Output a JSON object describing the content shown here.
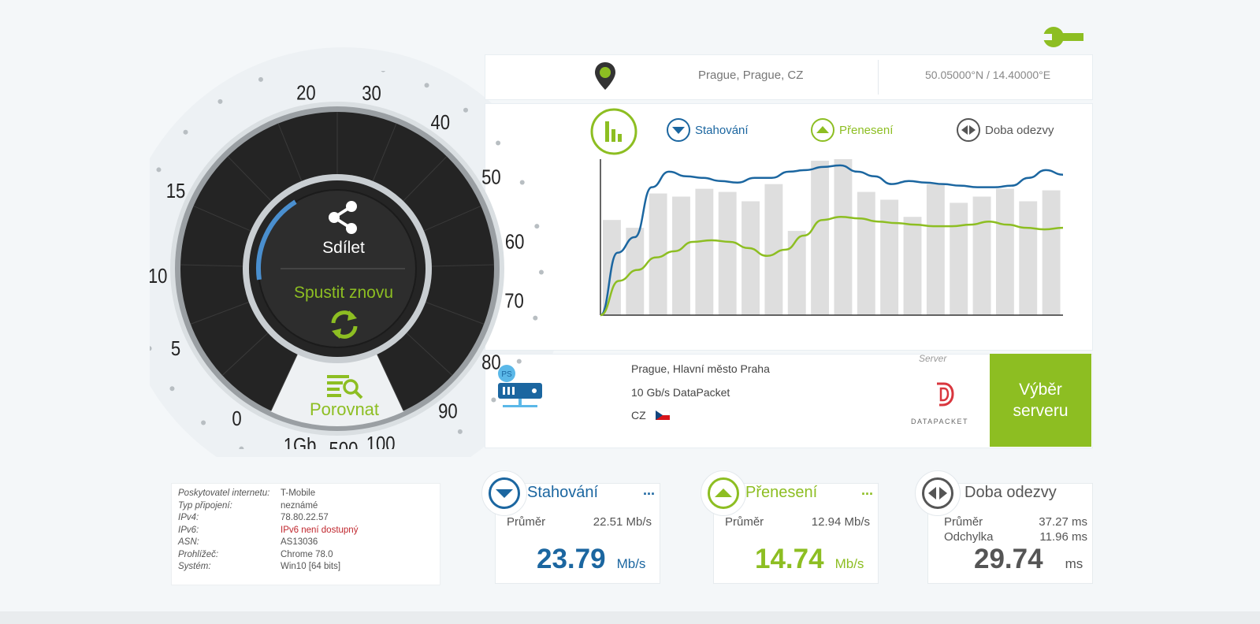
{
  "settings_icon": "wrench-icon",
  "location": {
    "icon": "map-pin-icon",
    "city": "Prague, Prague, CZ",
    "coords": "50.05000°N / 14.40000°E"
  },
  "gauge": {
    "scale": [
      "0",
      "5",
      "10",
      "15",
      "20",
      "30",
      "40",
      "50",
      "60",
      "70",
      "80",
      "90",
      "100",
      "500",
      "1Gb"
    ],
    "share_label": "Sdílet",
    "restart_label": "Spustit znovu",
    "compare_label": "Porovnat"
  },
  "chart_legend": {
    "download": "Stahování",
    "upload": "Přenesení",
    "ping": "Doba odezvy"
  },
  "chart_data": {
    "type": "bar+line",
    "title": "",
    "xlabel": "",
    "ylabel": "",
    "ylim": [
      0,
      100
    ],
    "bars": [
      61,
      56,
      78,
      76,
      81,
      79,
      73,
      84,
      54,
      99,
      100,
      79,
      74,
      63,
      84,
      72,
      76,
      81,
      73,
      80
    ],
    "series": [
      {
        "name": "Stahování",
        "color": "#1b66a0",
        "values": [
          0,
          40,
          50,
          82,
          92,
          89,
          88,
          86,
          85,
          88,
          88,
          92,
          93,
          95,
          96,
          92,
          89,
          84,
          86,
          85,
          84,
          83,
          82,
          82,
          83,
          88,
          93,
          90
        ]
      },
      {
        "name": "Přenesení",
        "color": "#8dbe22",
        "values": [
          0,
          22,
          29,
          37,
          41,
          47,
          48,
          47,
          43,
          38,
          42,
          51,
          61,
          63,
          62,
          60,
          59,
          58,
          57,
          57,
          58,
          60,
          58,
          56,
          55,
          56
        ]
      }
    ]
  },
  "server": {
    "icon": "server-ps-icon",
    "city": "Prague, Hlavní město Praha",
    "provider": "10 Gb/s DataPacket",
    "country": "CZ",
    "label": "Server",
    "logo_text": "DATAPACKET",
    "select_label_1": "Výběr",
    "select_label_2": "serveru"
  },
  "info": {
    "rows": [
      {
        "label": "Poskytovatel internetu:",
        "value": "T-Mobile"
      },
      {
        "label": "Typ připojení:",
        "value": "neznámé"
      },
      {
        "label": "IPv4:",
        "value": "78.80.22.57"
      },
      {
        "label": "IPv6:",
        "value": "IPv6 není dostupný",
        "warn": true
      },
      {
        "label": "ASN:",
        "value": "AS13036"
      },
      {
        "label": "Prohlížeč:",
        "value": "Chrome 78.0"
      },
      {
        "label": "Systém:",
        "value": "Win10 [64 bits]"
      }
    ]
  },
  "results": {
    "download": {
      "title": "Stahování",
      "more": "...",
      "avg_label": "Průměr",
      "avg_value": "22.51 Mb/s",
      "value": "23.79",
      "unit": "Mb/s"
    },
    "upload": {
      "title": "Přenesení",
      "more": "...",
      "avg_label": "Průměr",
      "avg_value": "12.94 Mb/s",
      "value": "14.74",
      "unit": "Mb/s"
    },
    "ping": {
      "title": "Doba odezvy",
      "avg_label": "Průměr",
      "avg_value": "37.27 ms",
      "dev_label": "Odchylka",
      "dev_value": "11.96 ms",
      "value": "29.74",
      "unit": "ms"
    }
  },
  "colors": {
    "blue": "#1b66a0",
    "green": "#8dbe22",
    "gray": "#555555"
  }
}
